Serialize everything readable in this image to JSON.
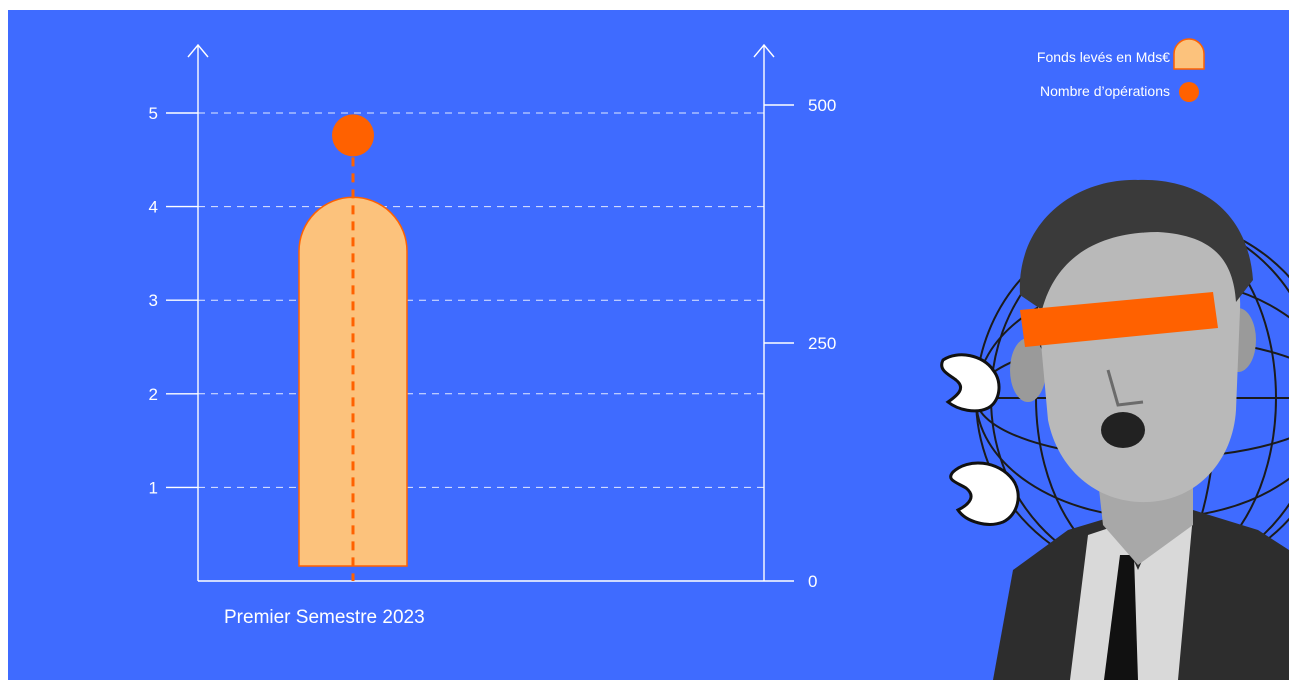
{
  "colors": {
    "background": "#3f6bff",
    "bar_fill": "#fcc27c",
    "accent": "#ff6100",
    "axis": "#ffffff"
  },
  "legend": {
    "items": [
      {
        "label": "Fonds levés en Mds€",
        "marker": "rounded-bar-swatch"
      },
      {
        "label": "Nombre d’opérations",
        "marker": "dot"
      }
    ]
  },
  "chart_data": {
    "type": "bar",
    "categories": [
      "Premier Semestre 2023"
    ],
    "series": [
      {
        "name": "Fonds levés en Mds€",
        "axis": "left",
        "values": [
          4.1
        ]
      },
      {
        "name": "Nombre d’opérations",
        "axis": "right",
        "values": [
          445
        ]
      }
    ],
    "y_left": {
      "range": [
        0,
        5
      ],
      "ticks": [
        "1",
        "2",
        "3",
        "4",
        "5"
      ]
    },
    "y_right": {
      "range": [
        0,
        500
      ],
      "ticks": [
        "0",
        "250",
        "500"
      ]
    },
    "grid": true,
    "legend_position": "top-right"
  },
  "illustration": {
    "subject": "surprised-man-photo-icon",
    "elements": [
      "globe-wireframe-icon",
      "pointing-hand-icon",
      "censor-bar-icon"
    ]
  }
}
